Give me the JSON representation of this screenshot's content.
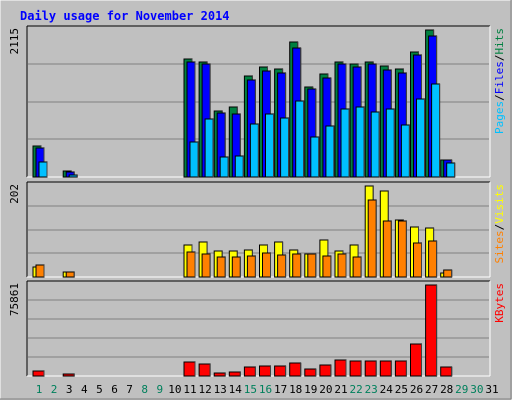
{
  "chart_data": {
    "type": "bar",
    "title": "Daily usage for November 2014",
    "categories": [
      "1",
      "2",
      "3",
      "4",
      "5",
      "6",
      "7",
      "8",
      "9",
      "10",
      "11",
      "12",
      "13",
      "14",
      "15",
      "16",
      "17",
      "18",
      "19",
      "20",
      "21",
      "22",
      "23",
      "24",
      "25",
      "26",
      "27",
      "28",
      "29",
      "30",
      "31"
    ],
    "weekend_days": [
      "1",
      "2",
      "8",
      "9",
      "15",
      "16",
      "22",
      "23",
      "29",
      "30"
    ],
    "panels": [
      {
        "id": "hits",
        "ymax_label": "2115",
        "ymax": 2115,
        "legend": [
          "Pages",
          "/",
          "Files",
          "/",
          "Hits"
        ],
        "series": [
          {
            "name": "Hits",
            "color": "#008040",
            "values": [
              440,
              0,
              80,
              0,
              0,
              0,
              0,
              0,
              0,
              0,
              1700,
              1660,
              950,
              1000,
              1450,
              1580,
              1560,
              1940,
              1300,
              1480,
              1650,
              1620,
              1660,
              1600,
              1560,
              1800,
              2115,
              250,
              0,
              0,
              0
            ]
          },
          {
            "name": "Files",
            "color": "#0000ff",
            "values": [
              420,
              0,
              70,
              0,
              0,
              0,
              0,
              0,
              0,
              0,
              1660,
              1620,
              920,
              900,
              1400,
              1530,
              1500,
              1860,
              1260,
              1420,
              1620,
              1580,
              1620,
              1540,
              1500,
              1750,
              2030,
              240,
              0,
              0,
              0
            ]
          },
          {
            "name": "Pages",
            "color": "#00c0ff",
            "values": [
              220,
              0,
              30,
              0,
              0,
              0,
              0,
              0,
              0,
              0,
              500,
              830,
              290,
              300,
              760,
              900,
              850,
              1100,
              570,
              740,
              980,
              1000,
              930,
              980,
              750,
              1120,
              1340,
              200,
              0,
              0,
              0
            ]
          }
        ]
      },
      {
        "id": "visits",
        "ymax_label": "202",
        "ymax": 202,
        "legend": [
          "Sites",
          "/",
          "Visits"
        ],
        "series": [
          {
            "name": "Visits",
            "color": "#ffff00",
            "values": [
              22,
              0,
              10,
              0,
              0,
              0,
              0,
              0,
              0,
              0,
              72,
              78,
              58,
              58,
              60,
              70,
              78,
              60,
              50,
              82,
              58,
              70,
              202,
              192,
              126,
              112,
              108,
              8,
              0,
              0,
              0
            ]
          },
          {
            "name": "Sites",
            "color": "#ff8000",
            "values": [
              26,
              0,
              12,
              0,
              0,
              0,
              0,
              0,
              0,
              0,
              56,
              50,
              44,
              44,
              46,
              54,
              48,
              50,
              50,
              46,
              52,
              45,
              172,
              124,
              124,
              76,
              81,
              16,
              0,
              0,
              0
            ]
          }
        ]
      },
      {
        "id": "kbytes",
        "ymax_label": "75861",
        "ymax": 75861,
        "legend": [
          "KBytes"
        ],
        "series": [
          {
            "name": "KBytes",
            "color": "#ff0000",
            "values": [
              4500,
              0,
              1300,
              0,
              0,
              0,
              0,
              0,
              0,
              0,
              11800,
              10300,
              2800,
              3000,
              7200,
              8400,
              8400,
              10600,
              5700,
              9200,
              13000,
              12500,
              12600,
              12300,
              12700,
              26800,
              75861,
              7300,
              0,
              0,
              0
            ]
          }
        ]
      }
    ],
    "colors": {
      "background": "#c0c0c0",
      "plot": "#c0c0c0",
      "title": "#0000ff",
      "weekday_label": "#000000",
      "weekend_label": "#00805c",
      "legend_pages": "#00c0ff",
      "legend_files": "#0000ff",
      "legend_hits": "#008040",
      "legend_sites": "#ff8000",
      "legend_visits": "#ffff00",
      "legend_kbytes": "#ff0000"
    }
  }
}
